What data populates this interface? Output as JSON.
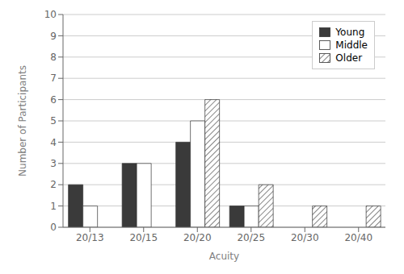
{
  "chart_data": {
    "type": "bar",
    "categories": [
      "20/13",
      "20/15",
      "20/20",
      "20/25",
      "20/30",
      "20/40"
    ],
    "series": [
      {
        "name": "Young",
        "color": "#3a3a3a",
        "values": [
          2,
          3,
          4,
          1,
          0,
          0
        ]
      },
      {
        "name": "Middle",
        "color": "#ffffff",
        "values": [
          1,
          3,
          5,
          1,
          0,
          0
        ]
      },
      {
        "name": "Older",
        "color": "#ffffff",
        "values": [
          0,
          0,
          6,
          2,
          1,
          1
        ]
      }
    ],
    "xlabel": "Acuity",
    "ylabel": "Number of Participants",
    "ylim": [
      0,
      10
    ],
    "yticks": [
      0,
      1,
      2,
      3,
      4,
      5,
      6,
      7,
      8,
      9,
      10
    ],
    "grid": true,
    "legend": "upper right"
  }
}
